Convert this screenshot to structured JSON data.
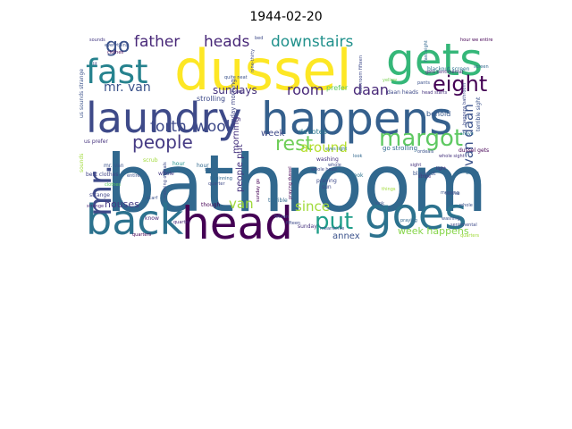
{
  "title": "1944-02-20",
  "words": [
    {
      "text": "bathroom",
      "color": "#31688e"
    },
    {
      "text": "dussel",
      "color": "#fde725"
    },
    {
      "text": "happens",
      "color": "#35608d"
    },
    {
      "text": "laundry",
      "color": "#3e4a89"
    },
    {
      "text": "head",
      "color": "#440154"
    },
    {
      "text": "back",
      "color": "#2c728e"
    },
    {
      "text": "goes",
      "color": "#2c728e"
    },
    {
      "text": "gets",
      "color": "#35b779"
    },
    {
      "text": "fast",
      "color": "#26828e"
    },
    {
      "text": "mr.",
      "color": "#3e4a89"
    },
    {
      "text": "margot",
      "color": "#5ec962"
    },
    {
      "text": "put",
      "color": "#1f9e89"
    },
    {
      "text": "eight",
      "color": "#440154"
    },
    {
      "text": "people",
      "color": "#443983"
    },
    {
      "text": "rest",
      "color": "#6ece58"
    },
    {
      "text": "go",
      "color": "#3b528b"
    },
    {
      "text": "father",
      "color": "#482878"
    },
    {
      "text": "heads",
      "color": "#482878"
    },
    {
      "text": "downstairs",
      "color": "#21918c"
    },
    {
      "text": "forth",
      "color": "#3e4a89"
    },
    {
      "text": "wool",
      "color": "#3e4a89"
    },
    {
      "text": "room",
      "color": "#482878"
    },
    {
      "text": "daan",
      "color": "#482878"
    },
    {
      "text": "around",
      "color": "#b5de2b"
    },
    {
      "text": "mr. van",
      "color": "#3b528b"
    },
    {
      "text": "van daan",
      "color": "#3b528b"
    },
    {
      "text": "since",
      "color": "#a0da39"
    },
    {
      "text": "van",
      "color": "#a0da39"
    },
    {
      "text": "sundays",
      "color": "#46337e"
    },
    {
      "text": "houses",
      "color": "#443983"
    },
    {
      "text": "week happens",
      "color": "#86d549"
    },
    {
      "text": "annex",
      "color": "#3b528b"
    },
    {
      "text": "morning",
      "color": "#46337e"
    },
    {
      "text": "week",
      "color": "#3e4a89"
    },
    {
      "text": "devotes",
      "color": "#2a788e"
    },
    {
      "text": "people put",
      "color": "#46337e"
    },
    {
      "text": "sunday morning",
      "color": "#404688"
    },
    {
      "text": "strolling",
      "color": "#3e4a89"
    },
    {
      "text": "prefer",
      "color": "#5ec962"
    },
    {
      "text": "behold",
      "color": "#38598c"
    },
    {
      "text": "go strolling",
      "color": "#31688e"
    },
    {
      "text": "daan heads",
      "color": "#3e4a89"
    },
    {
      "text": "head starts",
      "color": "#46337e"
    },
    {
      "text": "blackout screen",
      "color": "#2c728e"
    },
    {
      "text": "gets sentimental",
      "color": "#482878"
    },
    {
      "text": "happens bathroom",
      "color": "#3e4a89"
    },
    {
      "text": "terrible sight",
      "color": "#3b528b"
    },
    {
      "text": "dussel gets",
      "color": "#440154"
    },
    {
      "text": "hour",
      "color": "#31688e"
    },
    {
      "text": "mr. van",
      "color": "#3b528b"
    },
    {
      "text": "whole",
      "color": "#443983"
    },
    {
      "text": "stripe",
      "color": "#33638d"
    },
    {
      "text": "eyes light",
      "color": "#2c728e"
    },
    {
      "text": "washing",
      "color": "#46337e"
    },
    {
      "text": "praying",
      "color": "#3e4a89"
    },
    {
      "text": "sun",
      "color": "#3e4a89"
    },
    {
      "text": "look",
      "color": "#2c728e"
    },
    {
      "text": "blackout",
      "color": "#3b528b"
    },
    {
      "text": "whole head",
      "color": "#3e4a89"
    },
    {
      "text": "praying dussel",
      "color": "#440154"
    },
    {
      "text": "sunday",
      "color": "#46337e"
    },
    {
      "text": "fifteen",
      "color": "#3e4a89"
    },
    {
      "text": "terrible",
      "color": "#31688e"
    },
    {
      "text": "sounds",
      "color": "#a0da39"
    },
    {
      "text": "us prefer",
      "color": "#46337e"
    },
    {
      "text": "us sounds strange",
      "color": "#3b528b"
    },
    {
      "text": "strange",
      "color": "#404688"
    },
    {
      "text": "best clothes",
      "color": "#414487"
    },
    {
      "text": "scrub",
      "color": "#a0da39"
    },
    {
      "text": "know",
      "color": "#482878"
    },
    {
      "text": "quarter",
      "color": "#3e4a89"
    },
    {
      "text": "entire",
      "color": "#3b528b"
    },
    {
      "text": "beginning",
      "color": "#31688e"
    },
    {
      "text": "though",
      "color": "#440154"
    },
    {
      "text": "hour",
      "color": "#21918c"
    },
    {
      "text": "nine-thirty",
      "color": "#3e4a89"
    },
    {
      "text": "ordeals",
      "color": "#3b528b"
    },
    {
      "text": "clothes",
      "color": "#440154"
    },
    {
      "text": "everything",
      "color": "#3b528b"
    },
    {
      "text": "fifteen",
      "color": "#3e4a89"
    },
    {
      "text": "light",
      "color": "#46337e"
    },
    {
      "text": "pants",
      "color": "#3b528b"
    },
    {
      "text": "shave",
      "color": "#2c728e"
    },
    {
      "text": "stripe",
      "color": "#46337e"
    },
    {
      "text": "quarters",
      "color": "#440154"
    },
    {
      "text": "meanwhile",
      "color": "#3b528b"
    },
    {
      "text": "whole",
      "color": "#3e4a89"
    },
    {
      "text": "look",
      "color": "#31688e"
    },
    {
      "text": "hour we entire",
      "color": "#440154"
    },
    {
      "text": "quite neat",
      "color": "#3b528b"
    },
    {
      "text": "see",
      "color": "#46337e"
    },
    {
      "text": "bed",
      "color": "#3e4a89"
    },
    {
      "text": "screen",
      "color": "#31688e"
    },
    {
      "text": "twelve",
      "color": "#3b528b"
    },
    {
      "text": "sounds",
      "color": "#443983"
    },
    {
      "text": "lit",
      "color": "#3e4a89"
    },
    {
      "text": "praying",
      "color": "#31688e"
    },
    {
      "text": "whole sight",
      "color": "#46337e"
    },
    {
      "text": "scarf",
      "color": "#3b528b"
    },
    {
      "text": "yellow",
      "color": "#7ad151"
    },
    {
      "text": "things",
      "color": "#a0da39"
    },
    {
      "text": "morning ordeals",
      "color": "#3e4a89"
    },
    {
      "text": "clothes",
      "color": "#5ec962"
    },
    {
      "text": "wears",
      "color": "#31688e"
    },
    {
      "text": "sink",
      "color": "#3b528b"
    },
    {
      "text": "sunday go",
      "color": "#440154"
    },
    {
      "text": "strange",
      "color": "#482878"
    },
    {
      "text": "morning",
      "color": "#3b528b"
    },
    {
      "text": "sight",
      "color": "#46337e"
    },
    {
      "text": "bathroom fifteen",
      "color": "#3e4a89"
    },
    {
      "text": "washing",
      "color": "#3b528b"
    },
    {
      "text": "fast eight",
      "color": "#31688e"
    },
    {
      "text": "sentimental",
      "color": "#3e4a89"
    },
    {
      "text": "quarter",
      "color": "#482878"
    },
    {
      "text": "whole",
      "color": "#3b528b"
    },
    {
      "text": "quarters",
      "color": "#a0da39"
    }
  ]
}
